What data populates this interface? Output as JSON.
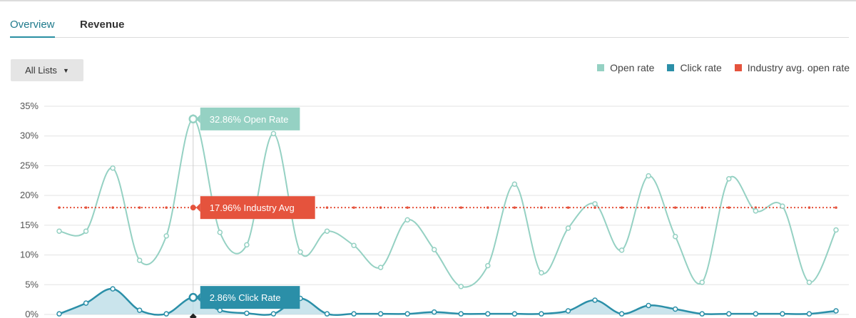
{
  "tabs": [
    {
      "label": "Overview",
      "active": true
    },
    {
      "label": "Revenue",
      "active": false
    }
  ],
  "list_filter": {
    "label": "All Lists"
  },
  "legend": [
    {
      "label": "Open rate",
      "color": "#95d1c3"
    },
    {
      "label": "Click rate",
      "color": "#2b8fa8"
    },
    {
      "label": "Industry avg. open rate",
      "color": "#e5533d"
    }
  ],
  "chart_data": {
    "type": "line",
    "ylim": [
      0,
      35
    ],
    "yticks": [
      "0%",
      "5%",
      "10%",
      "15%",
      "20%",
      "25%",
      "30%",
      "35%"
    ],
    "grid": true,
    "legend_position": "top-right",
    "series": [
      {
        "name": "Open rate",
        "color": "#95d1c3",
        "values": [
          14.0,
          14.0,
          24.6,
          9.1,
          13.2,
          32.86,
          13.8,
          11.7,
          30.4,
          10.5,
          14.0,
          11.6,
          7.9,
          15.9,
          10.9,
          4.7,
          8.2,
          21.9,
          7.0,
          14.5,
          18.6,
          10.8,
          23.3,
          13.1,
          5.4,
          22.8,
          17.4,
          18.2,
          5.4,
          14.2
        ]
      },
      {
        "name": "Click rate",
        "color": "#2b8fa8",
        "values": [
          0.1,
          1.9,
          4.3,
          0.7,
          0.1,
          2.86,
          0.7,
          0.2,
          0.1,
          2.7,
          0.1,
          0.1,
          0.1,
          0.1,
          0.4,
          0.1,
          0.1,
          0.1,
          0.1,
          0.6,
          2.4,
          0.1,
          1.5,
          0.9,
          0.1,
          0.1,
          0.1,
          0.1,
          0.1,
          0.6
        ]
      },
      {
        "name": "Industry avg. open rate",
        "color": "#e5533d",
        "values": [
          17.96,
          17.96,
          17.96,
          17.96,
          17.96,
          17.96,
          17.96,
          17.96,
          17.96,
          17.96,
          17.96,
          17.96,
          17.96,
          17.96,
          17.96,
          17.96,
          17.96,
          17.96,
          17.96,
          17.96,
          17.96,
          17.96,
          17.96,
          17.96,
          17.96,
          17.96,
          17.96,
          17.96,
          17.96,
          17.96
        ]
      }
    ],
    "tooltip_index": 5,
    "tooltips": {
      "open": "32.86% Open Rate",
      "industry": "17.96% Industry Avg",
      "click": "2.86% Click Rate"
    }
  }
}
